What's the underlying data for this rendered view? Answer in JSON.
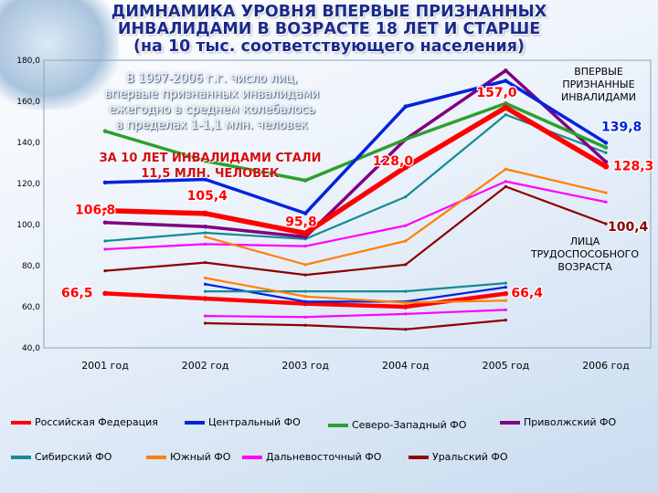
{
  "title": {
    "line1": "ДИМНАМИКА УРОВНЯ ВПЕРВЫЕ ПРИЗНАННЫХ",
    "line2": "ИНВАЛИДАМИ В ВОЗРАСТЕ 18 ЛЕТ И СТАРШЕ",
    "line3": "(на 10 тыс. соответствующего населения)"
  },
  "annotations": {
    "note_lines": [
      "В 1997-2006 г.г. число лиц,",
      "впервые признанных инвалидами",
      "ежегодно в среднем колебалось",
      "в пределах 1-1,1 млн. человек"
    ],
    "red_line1": "ЗА 10 ЛЕТ ИНВАЛИДАМИ СТАЛИ",
    "red_line2": "11,5 МЛН. ЧЕЛОВЕК",
    "group_top": "ВПЕРВЫЕ\nПРИЗНАННЫЕ\nИНВАЛИДАМИ",
    "group_bottom": "ЛИЦА\nТРУДОСПОСОБНОГО\nВОЗРАСТА"
  },
  "chart_data": {
    "type": "line",
    "categories": [
      "2001 год",
      "2002 год",
      "2003 год",
      "2004 год",
      "2005 год",
      "2006 год"
    ],
    "ylim": [
      40,
      180
    ],
    "yticks": [
      "40,0",
      "60,0",
      "80,0",
      "100,0",
      "120,0",
      "140,0",
      "160,0",
      "180,0"
    ],
    "series_group_top": [
      {
        "name": "Российская Федерация",
        "color": "#ff0000",
        "values": [
          106.8,
          105.4,
          95.8,
          128.0,
          157.0,
          128.3
        ]
      },
      {
        "name": "Центральный ФО",
        "color": "#0022dd",
        "values": [
          120.5,
          122.0,
          105.5,
          157.5,
          170.0,
          139.8
        ]
      },
      {
        "name": "Северо-Западный ФО",
        "color": "#2ca02c",
        "values": [
          145.5,
          131.0,
          121.5,
          141.5,
          159.0,
          137.5
        ]
      },
      {
        "name": "Приволжский ФО",
        "color": "#800080",
        "values": [
          101.0,
          99.0,
          94.0,
          141.5,
          175.0,
          130.5
        ]
      },
      {
        "name": "Сибирский ФО",
        "color": "#138b93",
        "values": [
          92.0,
          96.0,
          93.0,
          113.5,
          153.5,
          135.0
        ]
      },
      {
        "name": "Южный ФО",
        "color": "#ff8000",
        "values": [
          null,
          94.0,
          80.5,
          92.0,
          127.0,
          115.5
        ]
      },
      {
        "name": "Дальневосточный ФО",
        "color": "#ff00ff",
        "values": [
          88.0,
          90.5,
          89.5,
          99.5,
          121.0,
          111.0
        ]
      },
      {
        "name": "Уральский ФО",
        "color": "#8b0000",
        "values": [
          77.5,
          81.5,
          75.5,
          80.5,
          118.5,
          100.4
        ]
      }
    ],
    "series_group_bottom": [
      {
        "name": "Российская Федерация",
        "color": "#ff0000",
        "values": [
          66.5,
          64.0,
          61.5,
          60.0,
          66.4,
          null
        ]
      },
      {
        "name": "Центральный ФО",
        "color": "#0022dd",
        "values": [
          null,
          71.0,
          62.5,
          62.5,
          69.5,
          null
        ]
      },
      {
        "name": "Сибирский ФО",
        "color": "#138b93",
        "values": [
          null,
          67.5,
          67.5,
          67.5,
          71.5,
          null
        ]
      },
      {
        "name": "Южный ФО",
        "color": "#ff8000",
        "values": [
          null,
          74.0,
          65.0,
          62.0,
          63.0,
          null
        ]
      },
      {
        "name": "Дальневосточный ФО",
        "color": "#ff00ff",
        "values": [
          null,
          55.5,
          55.0,
          56.5,
          58.5,
          null
        ]
      },
      {
        "name": "Уральский ФО",
        "color": "#8b0000",
        "values": [
          null,
          52.0,
          51.0,
          49.0,
          53.5,
          null
        ]
      }
    ],
    "data_labels": [
      {
        "text": "106,8",
        "series": 0,
        "idx": 0,
        "color": "#ff0000"
      },
      {
        "text": "105,4",
        "series": 0,
        "idx": 1,
        "color": "#ff0000"
      },
      {
        "text": "95,8",
        "series": 0,
        "idx": 2,
        "color": "#ff0000"
      },
      {
        "text": "128,0",
        "series": 0,
        "idx": 3,
        "color": "#ff0000"
      },
      {
        "text": "157,0",
        "series": 0,
        "idx": 4,
        "color": "#ff0000"
      },
      {
        "text": "128,3",
        "series": 0,
        "idx": 5,
        "color": "#ff0000"
      },
      {
        "text": "139,8",
        "series": 1,
        "idx": 5,
        "color": "#0022dd"
      },
      {
        "text": "100,4",
        "series": 7,
        "idx": 5,
        "color": "#8b0000"
      },
      {
        "text": "66,5",
        "series": "b0",
        "idx": 0,
        "color": "#ff0000"
      },
      {
        "text": "66,4",
        "series": "b0",
        "idx": 4,
        "color": "#ff0000"
      }
    ]
  },
  "legend": [
    "Российская Федерация",
    "Центральный ФО",
    "Северо-Западный ФО",
    "Приволжский ФО",
    "Сибирский ФО",
    "Южный ФО",
    "Дальневосточный ФО",
    "Уральский ФО"
  ]
}
